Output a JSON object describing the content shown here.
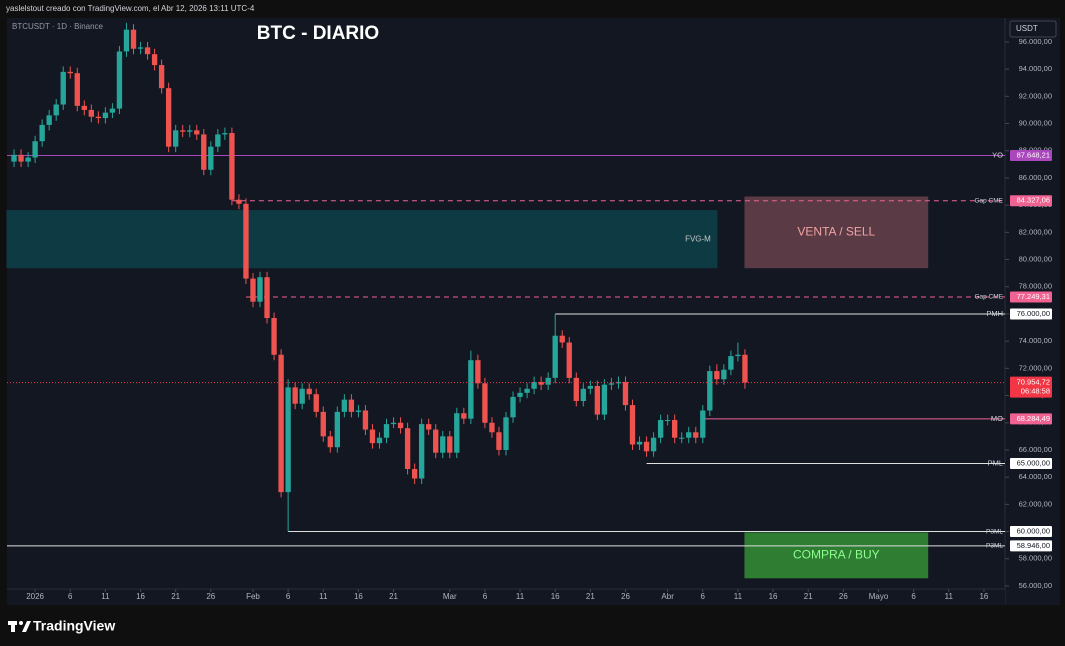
{
  "header": "yaslelstout creado con TradingView.com, el Abr 12, 2026 13:11 UTC-4",
  "logo": "TradingView",
  "chart_data": {
    "type": "candlestick",
    "title": "BTC - DIARIO",
    "symbol": "BTCUSDT · 1D · Binance",
    "currency": "USDT",
    "up_color": "#26a69a",
    "down_color": "#ef5350",
    "x": [
      "2025-12-29",
      "2025-12-30",
      "2025-12-31",
      "2026-01-01",
      "2026-01-02",
      "2026-01-03",
      "2026-01-04",
      "2026-01-05",
      "2026-01-06",
      "2026-01-07",
      "2026-01-08",
      "2026-01-09",
      "2026-01-10",
      "2026-01-11",
      "2026-01-12",
      "2026-01-13",
      "2026-01-14",
      "2026-01-15",
      "2026-01-16",
      "2026-01-17",
      "2026-01-18",
      "2026-01-19",
      "2026-01-20",
      "2026-01-21",
      "2026-01-22",
      "2026-01-23",
      "2026-01-24",
      "2026-01-25",
      "2026-01-26",
      "2026-01-27",
      "2026-01-28",
      "2026-01-29",
      "2026-01-30",
      "2026-01-31",
      "2026-02-01",
      "2026-02-02",
      "2026-02-03",
      "2026-02-04",
      "2026-02-05",
      "2026-02-06",
      "2026-02-07",
      "2026-02-08",
      "2026-02-09",
      "2026-02-10",
      "2026-02-11",
      "2026-02-12",
      "2026-02-13",
      "2026-02-14",
      "2026-02-15",
      "2026-02-16",
      "2026-02-17",
      "2026-02-18",
      "2026-02-19",
      "2026-02-20",
      "2026-02-21",
      "2026-02-22",
      "2026-02-23",
      "2026-02-24",
      "2026-02-25",
      "2026-02-26",
      "2026-02-27",
      "2026-02-28",
      "2026-03-01",
      "2026-03-02",
      "2026-03-03",
      "2026-03-04",
      "2026-03-05",
      "2026-03-06",
      "2026-03-07",
      "2026-03-08",
      "2026-03-09",
      "2026-03-10",
      "2026-03-11",
      "2026-03-12",
      "2026-03-13",
      "2026-03-14",
      "2026-03-15",
      "2026-03-16",
      "2026-03-17",
      "2026-03-18",
      "2026-03-19",
      "2026-03-20",
      "2026-03-21",
      "2026-03-22",
      "2026-03-23",
      "2026-03-24",
      "2026-03-25",
      "2026-03-26",
      "2026-03-27",
      "2026-03-28",
      "2026-03-29",
      "2026-03-30",
      "2026-03-31",
      "2026-04-01",
      "2026-04-02",
      "2026-04-03",
      "2026-04-04",
      "2026-04-05",
      "2026-04-06",
      "2026-04-07",
      "2026-04-08",
      "2026-04-09",
      "2026-04-10",
      "2026-04-11",
      "2026-04-12"
    ],
    "open": [
      87200,
      87700,
      87200,
      87500,
      88700,
      89900,
      90600,
      91400,
      93800,
      93700,
      91300,
      91000,
      90500,
      90400,
      90800,
      91100,
      95300,
      96900,
      95500,
      95600,
      95100,
      94300,
      92600,
      88300,
      89500,
      89400,
      89500,
      89200,
      86600,
      88300,
      89200,
      89300,
      84400,
      84100,
      78600,
      76900,
      78700,
      75700,
      73000,
      62900,
      70600,
      69400,
      70500,
      70100,
      68800,
      67000,
      66200,
      68800,
      69700,
      68800,
      68900,
      67500,
      66500,
      66900,
      67900,
      68000,
      67600,
      64600,
      63900,
      67900,
      67500,
      65800,
      67000,
      65800,
      68700,
      68300,
      72600,
      70900,
      68000,
      67300,
      66000,
      68400,
      69900,
      70200,
      70500,
      71000,
      70800,
      71300,
      74400,
      73900,
      71300,
      69600,
      70500,
      70700,
      68600,
      70800,
      70900,
      71000,
      69300,
      66400,
      66600,
      65900,
      66900,
      68200,
      68200,
      66900,
      66900,
      67300,
      66900,
      68900,
      71800,
      71200,
      71900,
      72900,
      73000
    ],
    "high": [
      88100,
      88100,
      87900,
      89100,
      90300,
      91000,
      91800,
      94200,
      94200,
      94100,
      91700,
      91400,
      90900,
      91200,
      91500,
      95700,
      97400,
      97300,
      96000,
      96000,
      95500,
      94700,
      93000,
      89900,
      89900,
      89900,
      89900,
      89600,
      88700,
      89600,
      89700,
      89700,
      84800,
      84500,
      79000,
      79100,
      79100,
      76100,
      73400,
      71200,
      71000,
      70900,
      70900,
      70500,
      69200,
      67400,
      69200,
      70100,
      70100,
      69300,
      69300,
      67900,
      67300,
      68300,
      68400,
      68400,
      68000,
      65000,
      68300,
      68300,
      67900,
      67400,
      67400,
      69100,
      69100,
      73300,
      73000,
      71300,
      68400,
      67700,
      68800,
      70300,
      70600,
      70900,
      71400,
      71400,
      71700,
      76000,
      74800,
      74300,
      71700,
      70900,
      71100,
      71100,
      71200,
      71300,
      71400,
      71400,
      69700,
      67000,
      67000,
      67300,
      68600,
      68600,
      68600,
      67300,
      67700,
      67700,
      69300,
      72200,
      72300,
      72300,
      73300,
      73900,
      73400
    ],
    "low": [
      86800,
      86800,
      86800,
      87100,
      88300,
      89500,
      90200,
      91000,
      93300,
      90900,
      90600,
      90100,
      90000,
      90000,
      90400,
      90700,
      94900,
      95100,
      95100,
      94700,
      93900,
      92200,
      87900,
      87900,
      89000,
      89000,
      88800,
      86200,
      86200,
      87900,
      88800,
      84000,
      83700,
      78200,
      76500,
      76500,
      75300,
      72600,
      62500,
      60000,
      69000,
      69000,
      69700,
      68400,
      66600,
      65800,
      65800,
      68400,
      68400,
      68400,
      67100,
      66100,
      66100,
      66500,
      67600,
      67200,
      64200,
      63500,
      63500,
      67100,
      65400,
      65400,
      65400,
      65400,
      67900,
      67900,
      70500,
      67600,
      66900,
      65600,
      65600,
      68000,
      69500,
      69800,
      70100,
      70400,
      70400,
      70900,
      73500,
      70900,
      69200,
      69200,
      70100,
      68200,
      68200,
      70400,
      70500,
      68900,
      66000,
      66000,
      65500,
      65500,
      66500,
      67800,
      66500,
      66500,
      66500,
      66500,
      66500,
      68500,
      70800,
      70800,
      71500,
      72500,
      70500
    ],
    "close": [
      87700,
      87200,
      87500,
      88700,
      89900,
      90600,
      91400,
      93800,
      93700,
      91300,
      91000,
      90500,
      90400,
      90800,
      91100,
      95300,
      96900,
      95500,
      95600,
      95100,
      94300,
      92600,
      88300,
      89500,
      89400,
      89500,
      89200,
      86600,
      88300,
      89200,
      89300,
      84400,
      84100,
      78600,
      76900,
      78700,
      75700,
      73000,
      62900,
      70600,
      69400,
      70500,
      70100,
      68800,
      67000,
      66200,
      68800,
      69700,
      68800,
      68900,
      67500,
      66500,
      66900,
      67900,
      68000,
      67600,
      64600,
      63900,
      67900,
      67500,
      65800,
      67000,
      65800,
      68700,
      68300,
      72600,
      70900,
      68000,
      67300,
      66000,
      68400,
      69900,
      70200,
      70500,
      71000,
      70800,
      71300,
      74400,
      73900,
      71300,
      69600,
      70500,
      70700,
      68600,
      70800,
      70900,
      71000,
      69300,
      66400,
      66600,
      65900,
      66900,
      68200,
      68200,
      66900,
      66900,
      67300,
      66900,
      68900,
      71800,
      71200,
      71900,
      72900,
      73000,
      70954.72
    ],
    "last": {
      "value": 70954.72,
      "label": "70.954,72",
      "countdown": "06:48:58",
      "color": "#f23645"
    },
    "xlim": [
      "2025-12-28",
      "2026-05-19"
    ],
    "xticks": [
      {
        "value": "2026-01-01",
        "label": "2026"
      },
      {
        "value": "2026-01-06",
        "label": "6"
      },
      {
        "value": "2026-01-11",
        "label": "11"
      },
      {
        "value": "2026-01-16",
        "label": "16"
      },
      {
        "value": "2026-01-21",
        "label": "21"
      },
      {
        "value": "2026-01-26",
        "label": "26"
      },
      {
        "value": "2026-02-01",
        "label": "Feb"
      },
      {
        "value": "2026-02-06",
        "label": "6"
      },
      {
        "value": "2026-02-11",
        "label": "11"
      },
      {
        "value": "2026-02-16",
        "label": "16"
      },
      {
        "value": "2026-02-21",
        "label": "21"
      },
      {
        "value": "2026-03-01",
        "label": "Mar"
      },
      {
        "value": "2026-03-06",
        "label": "6"
      },
      {
        "value": "2026-03-11",
        "label": "11"
      },
      {
        "value": "2026-03-16",
        "label": "16"
      },
      {
        "value": "2026-03-21",
        "label": "21"
      },
      {
        "value": "2026-03-26",
        "label": "26"
      },
      {
        "value": "2026-04-01",
        "label": "Abr"
      },
      {
        "value": "2026-04-06",
        "label": "6"
      },
      {
        "value": "2026-04-11",
        "label": "11"
      },
      {
        "value": "2026-04-16",
        "label": "16"
      },
      {
        "value": "2026-04-21",
        "label": "21"
      },
      {
        "value": "2026-04-26",
        "label": "26"
      },
      {
        "value": "2026-05-01",
        "label": "Mayo"
      },
      {
        "value": "2026-05-06",
        "label": "6"
      },
      {
        "value": "2026-05-11",
        "label": "11"
      },
      {
        "value": "2026-05-16",
        "label": "16"
      }
    ],
    "ylim": [
      54600,
      97760
    ],
    "yticks": [
      {
        "value": 56000,
        "label": "56.000,00"
      },
      {
        "value": 58000,
        "label": "58.000,00"
      },
      {
        "value": 60000,
        "label": "60.000,00"
      },
      {
        "value": 62000,
        "label": "62.000,00"
      },
      {
        "value": 64000,
        "label": "64.000,00"
      },
      {
        "value": 66000,
        "label": "66.000,00"
      },
      {
        "value": 68000,
        "label": "68.000,00"
      },
      {
        "value": 70000,
        "label": "70.000,00"
      },
      {
        "value": 72000,
        "label": "72.000,00"
      },
      {
        "value": 74000,
        "label": "74.000,00"
      },
      {
        "value": 76000,
        "label": "76.000,00"
      },
      {
        "value": 78000,
        "label": "78.000,00"
      },
      {
        "value": 80000,
        "label": "80.000,00"
      },
      {
        "value": 82000,
        "label": "82.000,00"
      },
      {
        "value": 84000,
        "label": "84.000,00"
      },
      {
        "value": 86000,
        "label": "86.000,00"
      },
      {
        "value": 88000,
        "label": "88.000,00"
      },
      {
        "value": 90000,
        "label": "90.000,00"
      },
      {
        "value": 92000,
        "label": "92.000,00"
      },
      {
        "value": 94000,
        "label": "94.000,00"
      },
      {
        "value": 96000,
        "label": "96.000,00"
      }
    ],
    "levels": [
      {
        "name": "YO",
        "value": 87648.21,
        "value_label": "87.648,21",
        "color": "#ab47bc",
        "dashed": false,
        "start": "2025-12-28"
      },
      {
        "name": "Gap CME",
        "value": 84327.06,
        "value_label": "84.327,06",
        "color": "#f06292",
        "dashed": true,
        "start": "2026-01-29"
      },
      {
        "name": "Gap CME",
        "value": 77249.31,
        "value_label": "77.249,31",
        "color": "#f06292",
        "dashed": true,
        "start": "2026-01-31"
      },
      {
        "name": "PMH",
        "value": 76000,
        "value_label": "76.000,00",
        "color": "#e0e0e0",
        "dashed": false,
        "start": "2026-03-16"
      },
      {
        "name": "MO",
        "value": 68284.49,
        "value_label": "68.284,49",
        "color": "#f06292",
        "dashed": false,
        "start": "2026-04-06"
      },
      {
        "name": "PML",
        "value": 65000,
        "value_label": "65.000,00",
        "color": "#e0e0e0",
        "dashed": false,
        "start": "2026-03-29"
      },
      {
        "name": "P3ML",
        "value": 60000,
        "value_label": "60.000,00",
        "color": "#e0e0e0",
        "dashed": false,
        "start": "2026-02-06"
      },
      {
        "name": "P3ML",
        "value": 58946,
        "value_label": "58.946,00",
        "color": "#e0e0e0",
        "dashed": false,
        "start": "2025-12-28"
      }
    ],
    "zones": [
      {
        "label": "FVG-M",
        "x": [
          "2025-12-28",
          "2026-04-08"
        ],
        "y": [
          79400,
          83600
        ],
        "fill": "#0e3a44",
        "color": "#c8c8c8"
      },
      {
        "label": "VENTA / SELL",
        "x": [
          "2026-04-12",
          "2026-05-08"
        ],
        "y": [
          79400,
          84600
        ],
        "fill": "#5a3a45",
        "color": "#f4a3a3"
      },
      {
        "label": "COMPRA / BUY",
        "x": [
          "2026-04-12",
          "2026-05-08"
        ],
        "y": [
          56600,
          59900
        ],
        "fill": "#2e7d32",
        "color": "#8cff8c"
      }
    ]
  }
}
